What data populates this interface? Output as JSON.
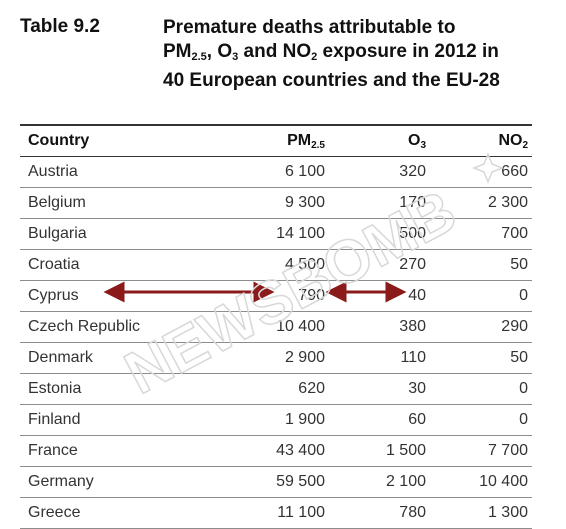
{
  "label": "Table 9.2",
  "title": {
    "part1": "Premature deaths attributable to",
    "pm": "PM",
    "pm_sub": "2.5",
    "part2": ", O",
    "o3_sub": "3",
    "part3": " and NO",
    "no2_sub": "2",
    "part4": " exposure in 2012 in",
    "line3": "40 European countries and the EU-28"
  },
  "table": {
    "headers": {
      "country": "Country",
      "pm": "PM",
      "pm_sub": "2.5",
      "o3": "O",
      "o3_sub": "3",
      "no2": "NO",
      "no2_sub": "2"
    },
    "rows": [
      {
        "country": "Austria",
        "pm25": "6 100",
        "o3": "320",
        "no2": "660"
      },
      {
        "country": "Belgium",
        "pm25": "9 300",
        "o3": "170",
        "no2": "2 300"
      },
      {
        "country": "Bulgaria",
        "pm25": "14 100",
        "o3": "500",
        "no2": "700"
      },
      {
        "country": "Croatia",
        "pm25": "4 500",
        "o3": "270",
        "no2": "50"
      },
      {
        "country": "Cyprus",
        "pm25": "790",
        "o3": "40",
        "no2": "0"
      },
      {
        "country": "Czech Republic",
        "pm25": "10 400",
        "o3": "380",
        "no2": "290"
      },
      {
        "country": "Denmark",
        "pm25": "2 900",
        "o3": "110",
        "no2": "50"
      },
      {
        "country": "Estonia",
        "pm25": "620",
        "o3": "30",
        "no2": "0"
      },
      {
        "country": "Finland",
        "pm25": "1 900",
        "o3": "60",
        "no2": "0"
      },
      {
        "country": "France",
        "pm25": "43 400",
        "o3": "1 500",
        "no2": "7 700"
      },
      {
        "country": "Germany",
        "pm25": "59 500",
        "o3": "2 100",
        "no2": "10 400"
      },
      {
        "country": "Greece",
        "pm25": "11 100",
        "o3": "780",
        "no2": "1 300"
      }
    ]
  },
  "watermark": {
    "text": "NEWSBOMB",
    "color": "#d8d8d8"
  },
  "colors": {
    "arrow": "#8b1a1a"
  }
}
